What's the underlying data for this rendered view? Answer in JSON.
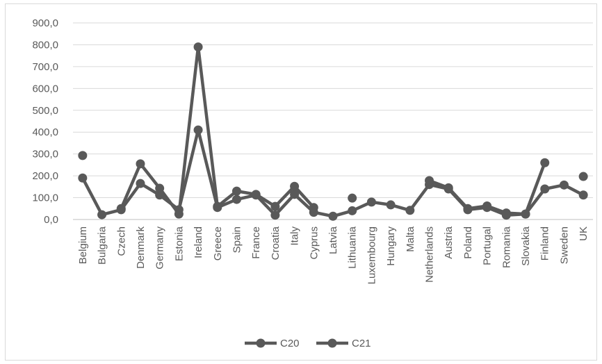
{
  "chart_data": {
    "type": "line",
    "categories": [
      "Belgium",
      "Bulgaria",
      "Czech",
      "Denmark",
      "Germany",
      "Estonia",
      "Ireland",
      "Greece",
      "Spain",
      "France",
      "Croatia",
      "Italy",
      "Cyprus",
      "Latvia",
      "Lithuania",
      "Luxembourg",
      "Hungary",
      "Malta",
      "Netherlands",
      "Austria",
      "Poland",
      "Portugal",
      "Romania",
      "Slovakia",
      "Finland",
      "Sweden",
      "UK"
    ],
    "series": [
      {
        "name": "C20",
        "color": "#595959",
        "values": [
          190,
          22,
          45,
          165,
          112,
          45,
          410,
          55,
          92,
          112,
          20,
          115,
          33,
          15,
          40,
          80,
          67,
          42,
          160,
          140,
          45,
          55,
          20,
          25,
          140,
          158,
          112
        ]
      },
      {
        "name": "C21",
        "color": "#595959",
        "values": [
          293,
          null,
          50,
          255,
          143,
          25,
          790,
          60,
          130,
          115,
          60,
          152,
          55,
          null,
          98,
          null,
          null,
          null,
          178,
          145,
          50,
          62,
          30,
          25,
          260,
          null,
          197
        ]
      }
    ],
    "y_ticks": [
      "0,0",
      "100,0",
      "200,0",
      "300,0",
      "400,0",
      "500,0",
      "600,0",
      "700,0",
      "800,0",
      "900,0"
    ],
    "ylim": [
      0,
      900
    ],
    "grid": true,
    "legend_position": "bottom",
    "title": "",
    "xlabel": "",
    "ylabel": ""
  }
}
